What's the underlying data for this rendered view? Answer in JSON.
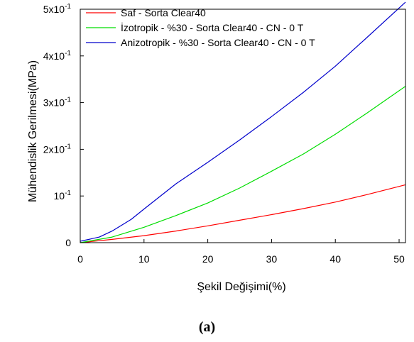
{
  "caption": "(a)",
  "chart_data": {
    "type": "line",
    "xlabel": "Şekil Değişimi(%)",
    "ylabel": "Mühendislik Gerilmesi(MPa)",
    "xlim": [
      0,
      51
    ],
    "ylim": [
      0,
      0.5
    ],
    "x_ticks": [
      {
        "value": 0,
        "label": "0"
      },
      {
        "value": 10,
        "label": "10"
      },
      {
        "value": 20,
        "label": "20"
      },
      {
        "value": 30,
        "label": "30"
      },
      {
        "value": 40,
        "label": "40"
      },
      {
        "value": 50,
        "label": "50"
      }
    ],
    "y_ticks": [
      {
        "value": 0,
        "base": "0",
        "exp": ""
      },
      {
        "value": 0.1,
        "base": "10",
        "exp": "-1"
      },
      {
        "value": 0.2,
        "base": "2x10",
        "exp": "-1"
      },
      {
        "value": 0.3,
        "base": "3x10",
        "exp": "-1"
      },
      {
        "value": 0.4,
        "base": "4x10",
        "exp": "-1"
      },
      {
        "value": 0.5,
        "base": "5x10",
        "exp": "-1"
      }
    ],
    "grid": false,
    "legend_position": "top-left",
    "series": [
      {
        "name": "Saf - Sorta Clear40",
        "color": "#ff0000",
        "x": [
          0,
          5,
          10,
          15,
          20,
          25,
          30,
          35,
          40,
          45,
          51
        ],
        "y": [
          0.0,
          0.007,
          0.015,
          0.025,
          0.036,
          0.048,
          0.06,
          0.073,
          0.087,
          0.103,
          0.124
        ]
      },
      {
        "name": "İzotropik - %30 - Sorta Clear40 - CN - 0 T",
        "color": "#00dd00",
        "x": [
          0,
          5,
          10,
          15,
          20,
          25,
          30,
          35,
          40,
          45,
          51
        ],
        "y": [
          0.0,
          0.012,
          0.033,
          0.058,
          0.085,
          0.117,
          0.153,
          0.19,
          0.232,
          0.278,
          0.335
        ]
      },
      {
        "name": "Anizotropik - %30 - Sorta Clear40 - CN - 0 T",
        "color": "#0000cc",
        "x": [
          0,
          3,
          5,
          8,
          10,
          15,
          20,
          25,
          30,
          35,
          40,
          45,
          51
        ],
        "y": [
          0.003,
          0.012,
          0.025,
          0.05,
          0.072,
          0.126,
          0.172,
          0.22,
          0.27,
          0.322,
          0.378,
          0.44,
          0.515
        ]
      }
    ]
  }
}
